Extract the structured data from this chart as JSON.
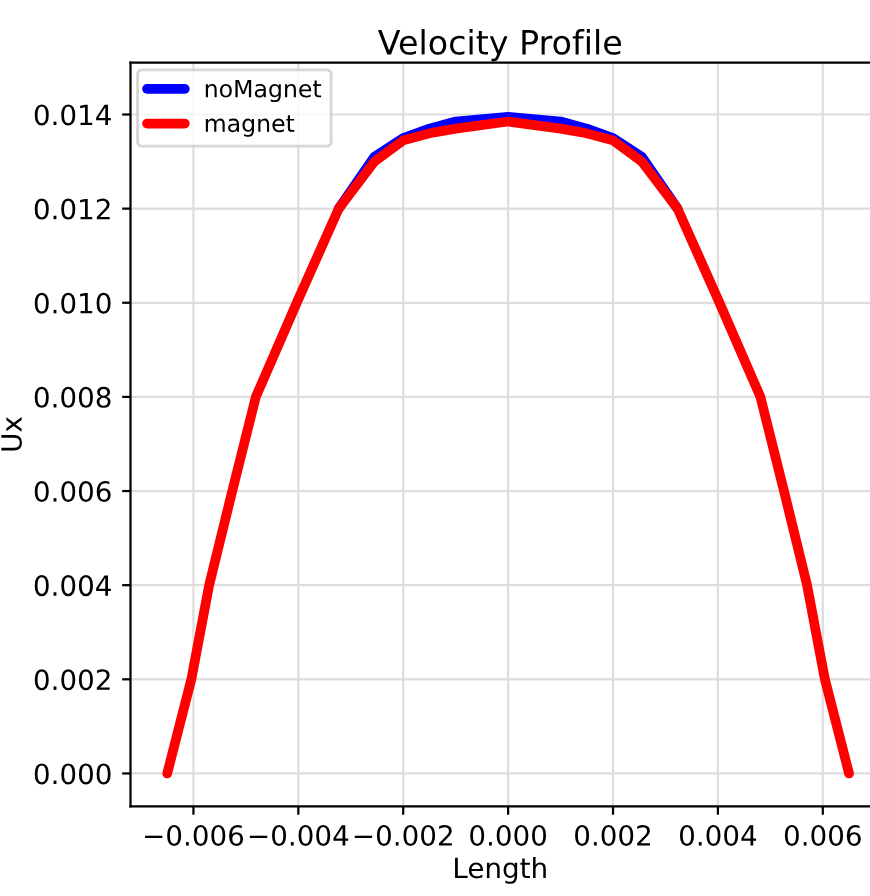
{
  "chart_data": {
    "type": "line",
    "title": "Velocity Profile",
    "xlabel": "Length",
    "ylabel": "Ux",
    "x": [
      -0.0065,
      -0.00604,
      -0.0057,
      -0.00526,
      -0.00481,
      -0.00403,
      -0.00323,
      -0.00255,
      -0.002,
      -0.0015,
      -0.001,
      0,
      0.001,
      0.0015,
      0.002,
      0.00255,
      0.00323,
      0.00403,
      0.00481,
      0.00526,
      0.0057,
      0.00604,
      0.0065
    ],
    "series": [
      {
        "name": "noMagnet",
        "color": "#0000ff",
        "values": [
          null,
          null,
          null,
          null,
          null,
          null,
          0.012,
          0.0131,
          0.0135,
          0.0137,
          0.01385,
          0.01395,
          0.01385,
          0.0137,
          0.0135,
          0.0131,
          0.012,
          null,
          null,
          null,
          null,
          null,
          null
        ]
      },
      {
        "name": "magnet",
        "color": "#ff0000",
        "values": [
          0,
          0.002,
          0.004,
          0.006,
          0.008,
          0.01,
          0.012,
          0.013,
          0.01345,
          0.0136,
          0.0137,
          0.01385,
          0.0137,
          0.0136,
          0.01345,
          0.013,
          0.012,
          0.01,
          0.008,
          0.006,
          0.004,
          0.002,
          0
        ]
      }
    ],
    "xlim": [
      -0.0072,
      0.0069
    ],
    "ylim": [
      -0.0007,
      0.0151
    ],
    "xticks": [
      {
        "value": -0.006,
        "label": "−0.006"
      },
      {
        "value": -0.004,
        "label": "−0.004"
      },
      {
        "value": -0.002,
        "label": "−0.002"
      },
      {
        "value": 0,
        "label": "0.000"
      },
      {
        "value": 0.002,
        "label": "0.002"
      },
      {
        "value": 0.004,
        "label": "0.004"
      },
      {
        "value": 0.006,
        "label": "0.006"
      }
    ],
    "yticks": [
      {
        "value": 0,
        "label": "0.000"
      },
      {
        "value": 0.002,
        "label": "0.002"
      },
      {
        "value": 0.004,
        "label": "0.004"
      },
      {
        "value": 0.006,
        "label": "0.006"
      },
      {
        "value": 0.008,
        "label": "0.008"
      },
      {
        "value": 0.01,
        "label": "0.010"
      },
      {
        "value": 0.012,
        "label": "0.012"
      },
      {
        "value": 0.014,
        "label": "0.014"
      }
    ],
    "grid": true,
    "legend": "top left",
    "marker": "none",
    "line_style": "solid"
  }
}
